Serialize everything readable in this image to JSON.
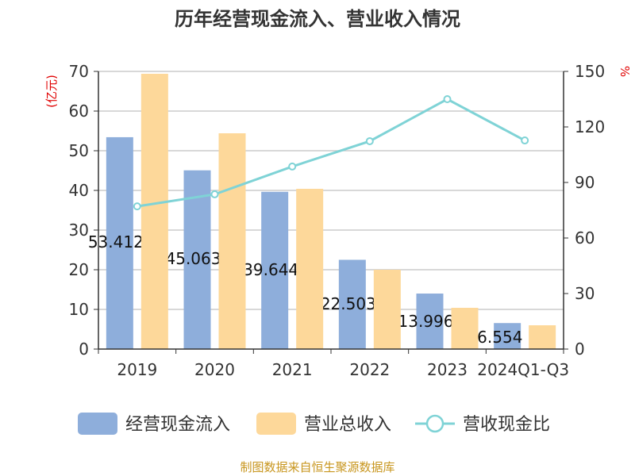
{
  "chart_data": {
    "type": "bar",
    "title": "历年经营现金流入、营业收入情况",
    "categories": [
      "2019",
      "2020",
      "2021",
      "2022",
      "2023",
      "2024Q1-Q3"
    ],
    "left_axis": {
      "label": "(亿元)",
      "range": [
        0,
        70
      ],
      "ticks": [
        0,
        10,
        20,
        30,
        40,
        50,
        60,
        70
      ]
    },
    "right_axis": {
      "label": "%",
      "range": [
        0,
        150
      ],
      "ticks": [
        0,
        30,
        60,
        90,
        120,
        150
      ]
    },
    "grid": true,
    "legend_position": "bottom",
    "series": [
      {
        "name": "经营现金流入",
        "type": "bar",
        "axis": "left",
        "color": "#8eaedb",
        "values": [
          53.412,
          45.063,
          39.644,
          22.503,
          13.996,
          6.554
        ],
        "labels": [
          "53.412",
          "45.063",
          "39.644",
          "22.503",
          "13.996",
          "6.554"
        ]
      },
      {
        "name": "营业总收入",
        "type": "bar",
        "axis": "left",
        "color": "#fdd89a",
        "values": [
          69.4,
          54.4,
          40.4,
          20.0,
          10.4,
          6.0
        ]
      },
      {
        "name": "营收现金比",
        "type": "line",
        "axis": "right",
        "color": "#7fd3d6",
        "values": [
          77.1,
          83.6,
          98.6,
          112.3,
          135.0,
          112.7
        ]
      }
    ]
  },
  "footer": "制图数据来自恒生聚源数据库",
  "colors": {
    "title": "#333333",
    "axis_label": "#e00000",
    "footer": "#c8961e"
  }
}
